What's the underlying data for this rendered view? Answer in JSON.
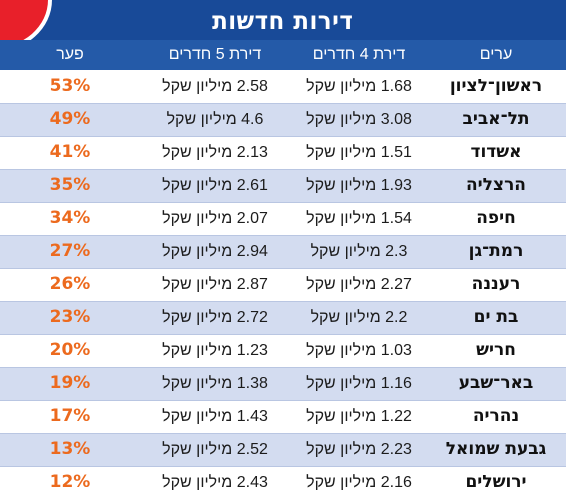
{
  "title": "דירות חדשות",
  "colors": {
    "title_background": "#184a98",
    "header_background": "#245aa8",
    "row_alternate": "#d3dcf0",
    "gap_text": "#ec6a1e",
    "corner_accent": "#e8202a"
  },
  "chart_data": {
    "type": "table",
    "title": "דירות חדשות",
    "columns": [
      "ערים",
      "דירת 4 חדרים",
      "דירת 5 חדרים",
      "פער"
    ],
    "rows": [
      {
        "city": "ראשון־לציון",
        "four_rooms": "1.68 מיליון שקל",
        "five_rooms": "2.58 מיליון שקל",
        "gap": "53%"
      },
      {
        "city": "תל־אביב",
        "four_rooms": "3.08 מיליון שקל",
        "five_rooms": "4.6 מיליון שקל",
        "gap": "49%"
      },
      {
        "city": "אשדוד",
        "four_rooms": "1.51 מיליון שקל",
        "five_rooms": "2.13 מיליון שקל",
        "gap": "41%"
      },
      {
        "city": "הרצליה",
        "four_rooms": "1.93 מיליון שקל",
        "five_rooms": "2.61 מיליון שקל",
        "gap": "35%"
      },
      {
        "city": "חיפה",
        "four_rooms": "1.54 מיליון שקל",
        "five_rooms": "2.07 מיליון שקל",
        "gap": "34%"
      },
      {
        "city": "רמת־גן",
        "four_rooms": "2.3 מיליון שקל",
        "five_rooms": "2.94 מיליון שקל",
        "gap": "27%"
      },
      {
        "city": "רעננה",
        "four_rooms": "2.27 מיליון שקל",
        "five_rooms": "2.87 מיליון שקל",
        "gap": "26%"
      },
      {
        "city": "בת ים",
        "four_rooms": "2.2 מיליון שקל",
        "five_rooms": "2.72 מיליון שקל",
        "gap": "23%"
      },
      {
        "city": "חריש",
        "four_rooms": "1.03 מיליון שקל",
        "five_rooms": "1.23 מיליון שקל",
        "gap": "20%"
      },
      {
        "city": "באר־שבע",
        "four_rooms": "1.16 מיליון שקל",
        "five_rooms": "1.38 מיליון שקל",
        "gap": "19%"
      },
      {
        "city": "נהריה",
        "four_rooms": "1.22 מיליון שקל",
        "five_rooms": "1.43 מיליון שקל",
        "gap": "17%"
      },
      {
        "city": "גבעת שמואל",
        "four_rooms": "2.23 מיליון שקל",
        "five_rooms": "2.52 מיליון שקל",
        "gap": "13%"
      },
      {
        "city": "ירושלים",
        "four_rooms": "2.16 מיליון שקל",
        "five_rooms": "2.43 מיליון שקל",
        "gap": "12%"
      }
    ]
  }
}
